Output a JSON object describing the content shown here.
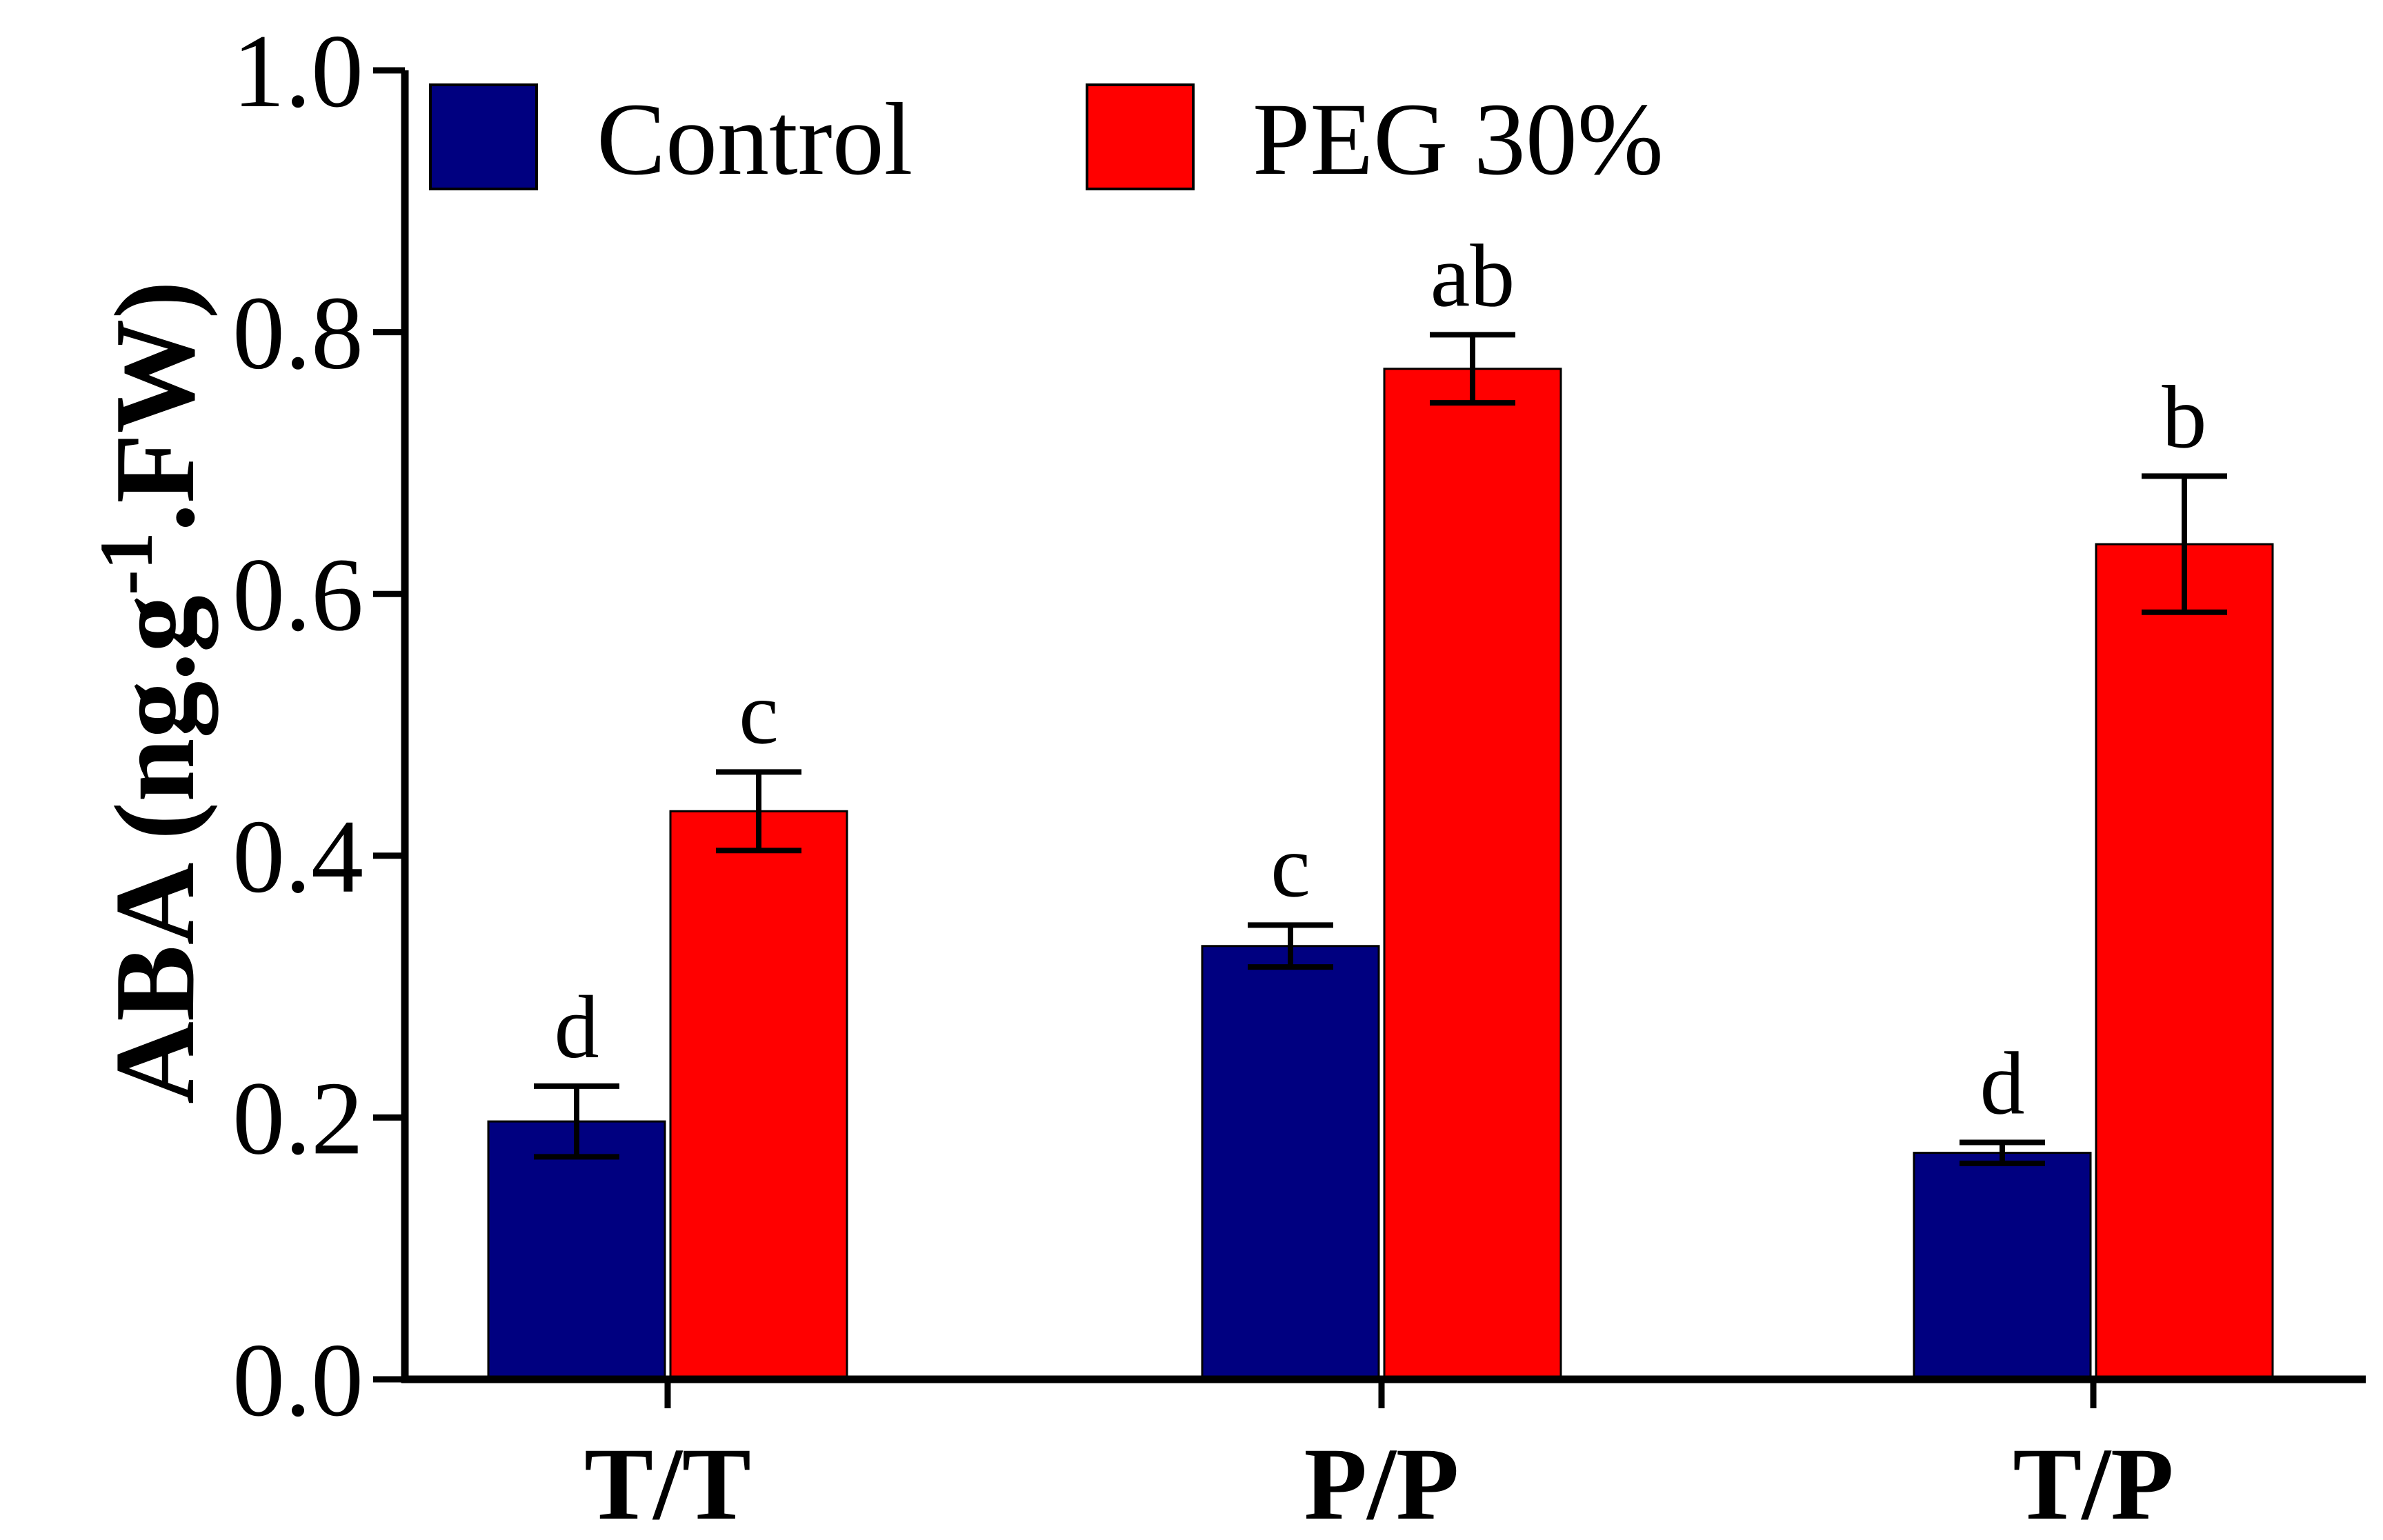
{
  "chart_data": {
    "type": "bar",
    "title": "",
    "xlabel": "",
    "ylabel": "ABA (ng.g",
    "ylabel_superscript": "-1",
    "ylabel_suffix": ".FW)",
    "ylim": [
      0,
      1.0
    ],
    "yticks": [
      "0.0",
      "0.2",
      "0.4",
      "0.6",
      "0.8",
      "1.0"
    ],
    "categories": [
      "T/T",
      "P/P",
      "T/P"
    ],
    "series": [
      {
        "name": "Control",
        "color": "#000080",
        "values": [
          0.197,
          0.331,
          0.173
        ],
        "errors": [
          0.027,
          0.016,
          0.008
        ],
        "labels": [
          "d",
          "c",
          "d"
        ]
      },
      {
        "name": "PEG 30%",
        "color": "#ff0000",
        "values": [
          0.434,
          0.772,
          0.638
        ],
        "errors": [
          0.03,
          0.026,
          0.052
        ],
        "labels": [
          "c",
          "ab",
          "b"
        ]
      }
    ],
    "legend": {
      "position": "top-left"
    }
  }
}
